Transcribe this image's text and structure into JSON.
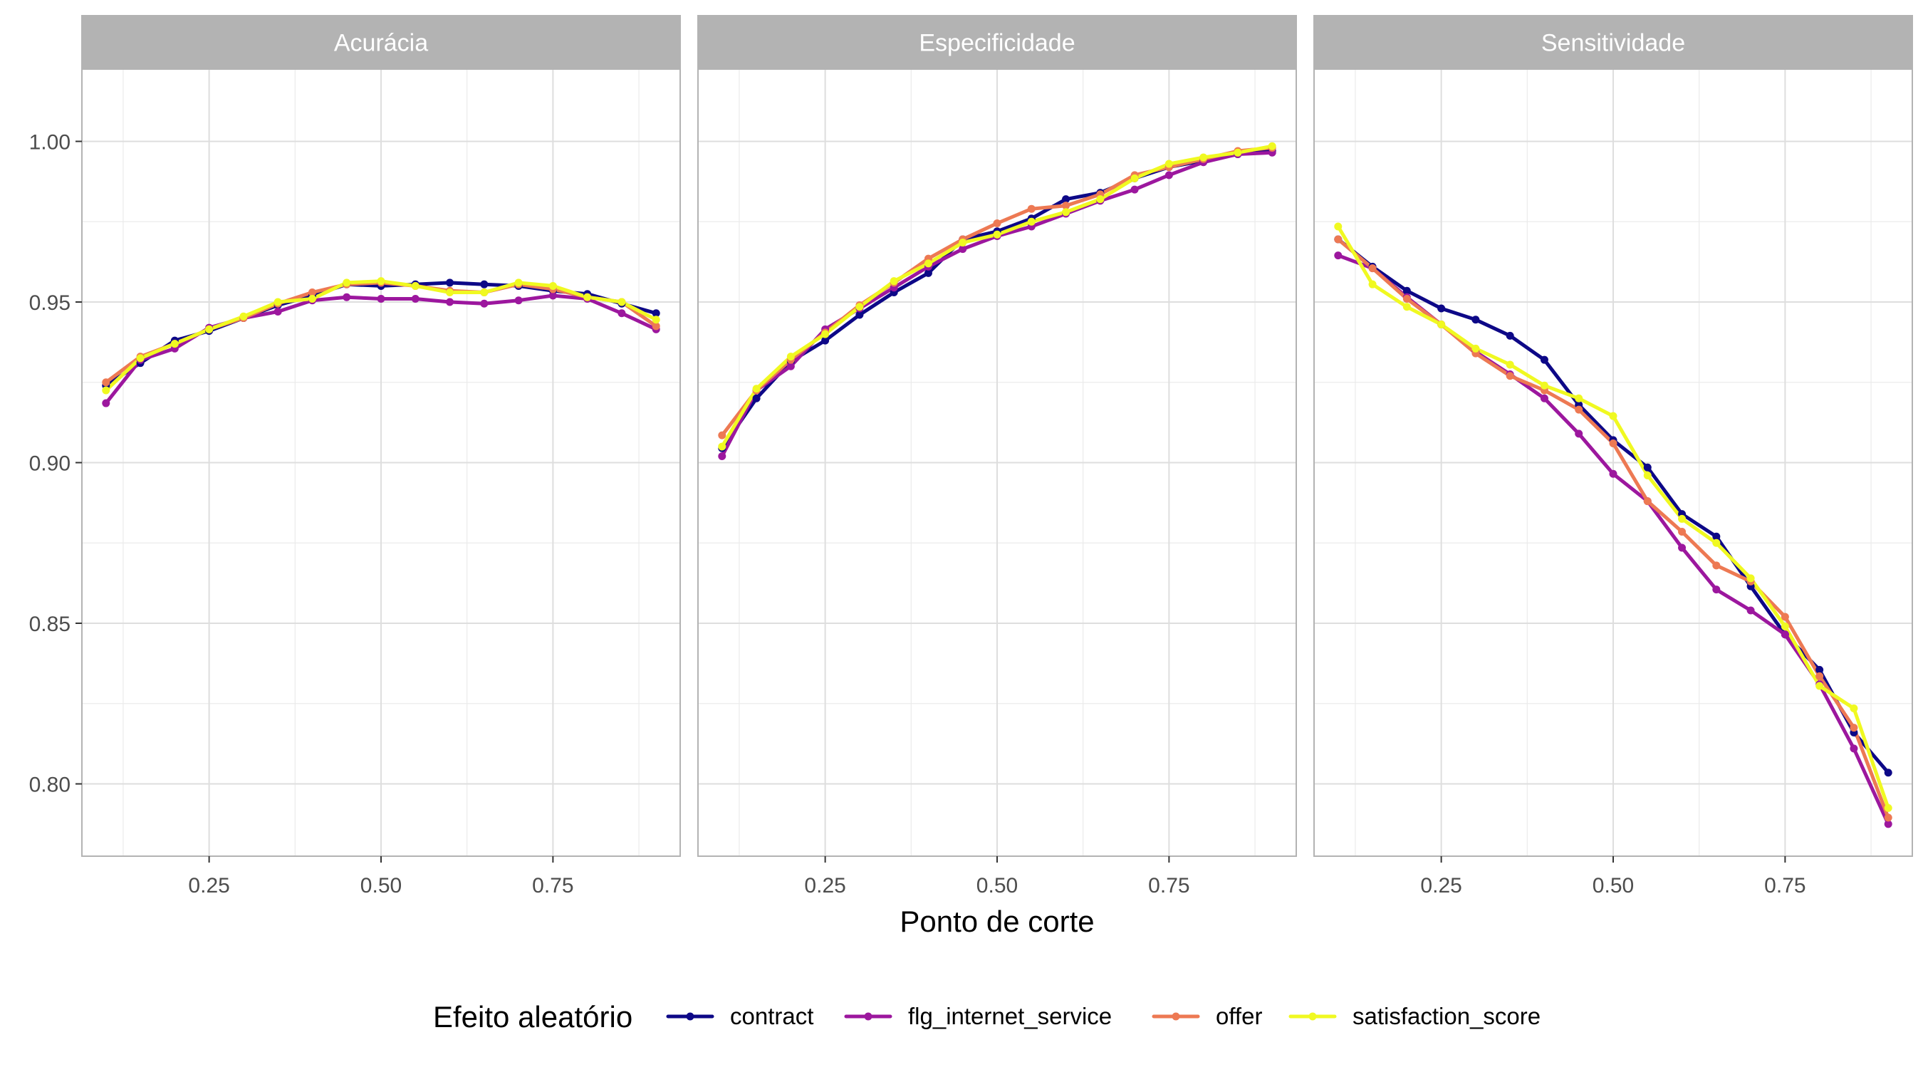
{
  "chart_data": {
    "type": "line",
    "xlabel": "Ponto de corte",
    "ylabel": "",
    "xlim": [
      0.065,
      0.935
    ],
    "ylim": [
      0.7775,
      1.0225
    ],
    "x_ticks": [
      0.25,
      0.5,
      0.75
    ],
    "x_tick_labels": [
      "0.25",
      "0.50",
      "0.75"
    ],
    "y_ticks": [
      0.8,
      0.85,
      0.9,
      0.95,
      1.0
    ],
    "y_tick_labels": [
      "0.80",
      "0.85",
      "0.90",
      "0.95",
      "1.00"
    ],
    "grid": true,
    "legend": {
      "title": "Efeito aleatório",
      "position": "bottom"
    },
    "colors": {
      "contract": "#0d0887",
      "flg_internet_service": "#9c179e",
      "offer": "#ed7953",
      "satisfaction_score": "#f0f921"
    },
    "series_names": [
      "contract",
      "flg_internet_service",
      "offer",
      "satisfaction_score"
    ],
    "panels": [
      {
        "title": "Acurácia",
        "series": [
          {
            "name": "contract",
            "x": [
              0.1,
              0.15,
              0.2,
              0.25,
              0.3,
              0.35,
              0.4,
              0.45,
              0.5,
              0.55,
              0.6,
              0.65,
              0.7,
              0.75,
              0.8,
              0.85,
              0.9
            ],
            "values": [
              0.924,
              0.931,
              0.938,
              0.941,
              0.945,
              0.949,
              0.952,
              0.9555,
              0.955,
              0.9555,
              0.956,
              0.9555,
              0.955,
              0.9535,
              0.9525,
              0.9495,
              0.9465
            ]
          },
          {
            "name": "flg_internet_service",
            "x": [
              0.1,
              0.15,
              0.2,
              0.25,
              0.3,
              0.35,
              0.4,
              0.45,
              0.5,
              0.55,
              0.6,
              0.65,
              0.7,
              0.75,
              0.8,
              0.85,
              0.9
            ],
            "values": [
              0.9185,
              0.932,
              0.9355,
              0.942,
              0.945,
              0.947,
              0.9505,
              0.9515,
              0.951,
              0.951,
              0.95,
              0.9495,
              0.9505,
              0.952,
              0.951,
              0.9465,
              0.9415
            ]
          },
          {
            "name": "offer",
            "x": [
              0.1,
              0.15,
              0.2,
              0.25,
              0.3,
              0.35,
              0.4,
              0.45,
              0.5,
              0.55,
              0.6,
              0.65,
              0.7,
              0.75,
              0.8,
              0.85,
              0.9
            ],
            "values": [
              0.925,
              0.933,
              0.937,
              0.9415,
              0.945,
              0.9495,
              0.953,
              0.9555,
              0.956,
              0.955,
              0.9535,
              0.953,
              0.9555,
              0.954,
              0.9515,
              0.95,
              0.9425
            ]
          },
          {
            "name": "satisfaction_score",
            "x": [
              0.1,
              0.15,
              0.2,
              0.25,
              0.3,
              0.35,
              0.4,
              0.45,
              0.5,
              0.55,
              0.6,
              0.65,
              0.7,
              0.75,
              0.8,
              0.85,
              0.9
            ],
            "values": [
              0.9225,
              0.9325,
              0.937,
              0.9415,
              0.9455,
              0.95,
              0.951,
              0.956,
              0.9565,
              0.955,
              0.953,
              0.953,
              0.956,
              0.955,
              0.9515,
              0.95,
              0.9445
            ]
          }
        ]
      },
      {
        "title": "Especificidade",
        "series": [
          {
            "name": "contract",
            "x": [
              0.1,
              0.15,
              0.2,
              0.25,
              0.3,
              0.35,
              0.4,
              0.45,
              0.5,
              0.55,
              0.6,
              0.65,
              0.7,
              0.75,
              0.8,
              0.85,
              0.9
            ],
            "values": [
              0.9045,
              0.92,
              0.9315,
              0.938,
              0.946,
              0.953,
              0.959,
              0.9695,
              0.972,
              0.976,
              0.982,
              0.984,
              0.9885,
              0.992,
              0.994,
              0.996,
              0.997
            ]
          },
          {
            "name": "flg_internet_service",
            "x": [
              0.1,
              0.15,
              0.2,
              0.25,
              0.3,
              0.35,
              0.4,
              0.45,
              0.5,
              0.55,
              0.6,
              0.65,
              0.7,
              0.75,
              0.8,
              0.85,
              0.9
            ],
            "values": [
              0.902,
              0.9225,
              0.93,
              0.9415,
              0.948,
              0.9545,
              0.961,
              0.9665,
              0.9705,
              0.9735,
              0.9775,
              0.9815,
              0.985,
              0.9895,
              0.9935,
              0.996,
              0.9965
            ]
          },
          {
            "name": "offer",
            "x": [
              0.1,
              0.15,
              0.2,
              0.25,
              0.3,
              0.35,
              0.4,
              0.45,
              0.5,
              0.55,
              0.6,
              0.65,
              0.7,
              0.75,
              0.8,
              0.85,
              0.9
            ],
            "values": [
              0.9085,
              0.9225,
              0.932,
              0.9405,
              0.949,
              0.956,
              0.9635,
              0.9695,
              0.9745,
              0.979,
              0.98,
              0.9835,
              0.9895,
              0.992,
              0.9945,
              0.997,
              0.998
            ]
          },
          {
            "name": "satisfaction_score",
            "x": [
              0.1,
              0.15,
              0.2,
              0.25,
              0.3,
              0.35,
              0.4,
              0.45,
              0.5,
              0.55,
              0.6,
              0.65,
              0.7,
              0.75,
              0.8,
              0.85,
              0.9
            ],
            "values": [
              0.905,
              0.923,
              0.933,
              0.94,
              0.9485,
              0.9565,
              0.962,
              0.9685,
              0.971,
              0.975,
              0.978,
              0.982,
              0.9885,
              0.993,
              0.995,
              0.9965,
              0.9985
            ]
          }
        ]
      },
      {
        "title": "Sensitividade",
        "series": [
          {
            "name": "contract",
            "x": [
              0.1,
              0.15,
              0.2,
              0.25,
              0.3,
              0.35,
              0.4,
              0.45,
              0.5,
              0.55,
              0.6,
              0.65,
              0.7,
              0.75,
              0.8,
              0.85,
              0.9
            ],
            "values": [
              0.9695,
              0.961,
              0.9535,
              0.948,
              0.9445,
              0.9395,
              0.932,
              0.918,
              0.907,
              0.8985,
              0.884,
              0.877,
              0.8615,
              0.8465,
              0.8355,
              0.816,
              0.8035
            ]
          },
          {
            "name": "flg_internet_service",
            "x": [
              0.1,
              0.15,
              0.2,
              0.25,
              0.3,
              0.35,
              0.4,
              0.45,
              0.5,
              0.55,
              0.6,
              0.65,
              0.7,
              0.75,
              0.8,
              0.85,
              0.9
            ],
            "values": [
              0.9645,
              0.9605,
              0.9515,
              0.943,
              0.9345,
              0.9275,
              0.92,
              0.909,
              0.8965,
              0.888,
              0.8735,
              0.8605,
              0.854,
              0.8465,
              0.831,
              0.811,
              0.7875
            ]
          },
          {
            "name": "offer",
            "x": [
              0.1,
              0.15,
              0.2,
              0.25,
              0.3,
              0.35,
              0.4,
              0.45,
              0.5,
              0.55,
              0.6,
              0.65,
              0.7,
              0.75,
              0.8,
              0.85,
              0.9
            ],
            "values": [
              0.9695,
              0.9605,
              0.951,
              0.943,
              0.934,
              0.927,
              0.9225,
              0.9165,
              0.906,
              0.888,
              0.8785,
              0.868,
              0.863,
              0.852,
              0.8335,
              0.8175,
              0.7895
            ]
          },
          {
            "name": "satisfaction_score",
            "x": [
              0.1,
              0.15,
              0.2,
              0.25,
              0.3,
              0.35,
              0.4,
              0.45,
              0.5,
              0.55,
              0.6,
              0.65,
              0.7,
              0.75,
              0.8,
              0.85,
              0.9
            ],
            "values": [
              0.9735,
              0.9555,
              0.9485,
              0.943,
              0.9355,
              0.9305,
              0.924,
              0.92,
              0.9145,
              0.896,
              0.8825,
              0.875,
              0.864,
              0.849,
              0.8305,
              0.8235,
              0.7925
            ]
          }
        ]
      }
    ]
  }
}
